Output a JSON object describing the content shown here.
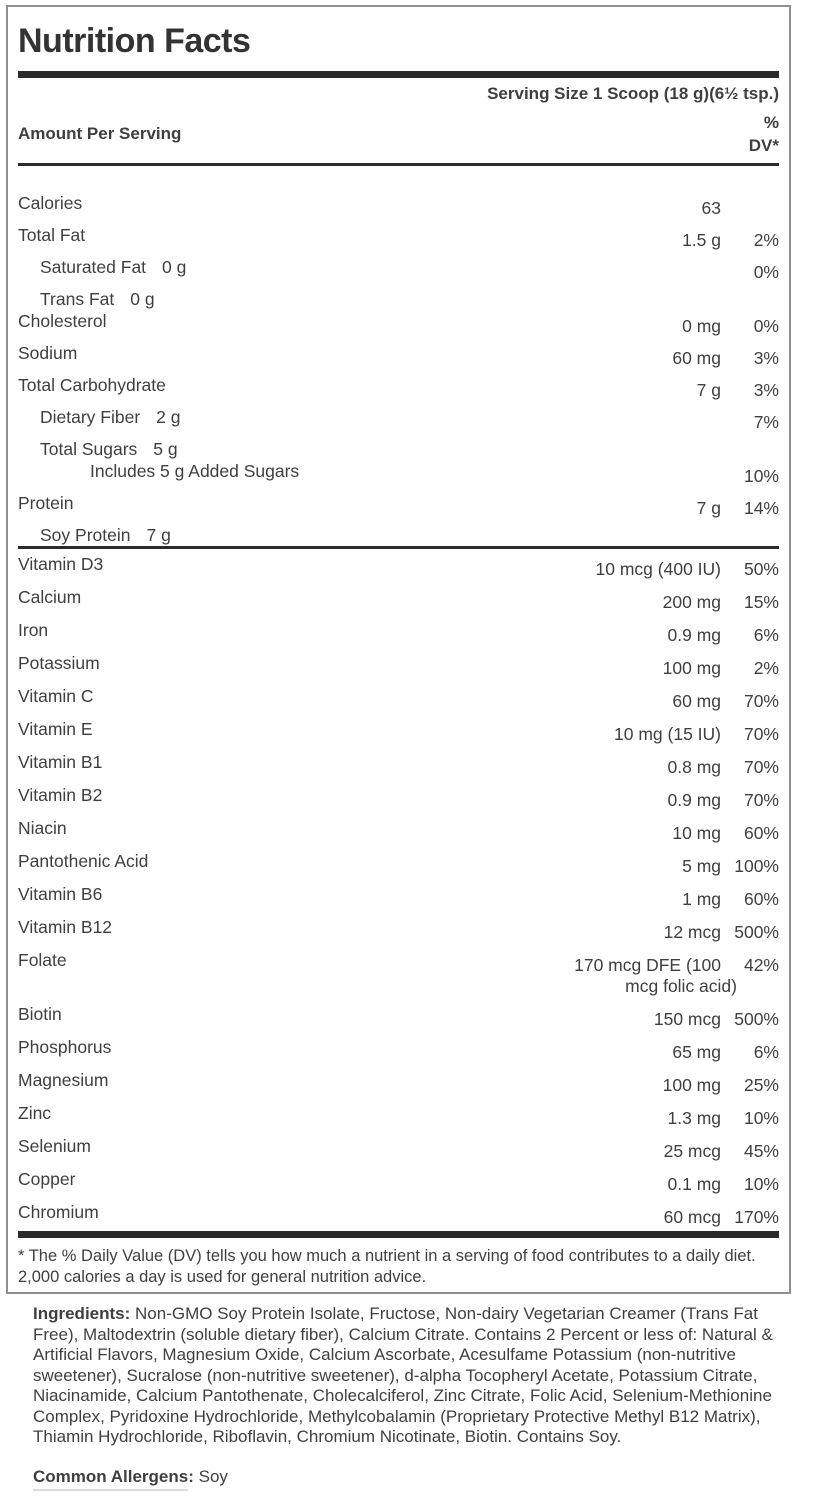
{
  "label": {
    "title": "Nutrition Facts",
    "serving_size": "Serving Size 1 Scoop (18 g)(6½ tsp.)",
    "amount_per_serving": "Amount Per Serving",
    "dv_header": [
      "%",
      "DV*"
    ],
    "macros": [
      {
        "name": "Calories",
        "amount": "63",
        "dv": ""
      },
      {
        "name": "Total Fat",
        "amount": "1.5 g",
        "dv": "2%"
      },
      {
        "name": "Saturated Fat",
        "inline_amount": "0 g",
        "dv": "0%",
        "indent": 1
      },
      {
        "name": "Trans Fat",
        "inline_amount": "0 g",
        "indent": 1,
        "tight_below": true
      },
      {
        "name": "Cholesterol",
        "amount": "0 mg",
        "dv": "0%"
      },
      {
        "name": "Sodium",
        "amount": "60 mg",
        "dv": "3%"
      },
      {
        "name": "Total Carbohydrate",
        "amount": "7 g",
        "dv": "3%"
      },
      {
        "name": "Dietary Fiber",
        "inline_amount": "2 g",
        "dv": "7%",
        "indent": 1
      },
      {
        "name": "Total Sugars",
        "inline_amount": "5 g",
        "indent": 1,
        "tight_below": true
      },
      {
        "name": "Includes 5 g Added Sugars",
        "dv": "10%",
        "indent": 2
      },
      {
        "name": "Protein",
        "amount": "7 g",
        "dv": "14%"
      },
      {
        "name": "Soy Protein",
        "inline_amount": "7 g",
        "indent": 1
      }
    ],
    "micros": [
      {
        "name": "Vitamin D3",
        "amount": "10 mcg (400 IU)",
        "dv": "50%"
      },
      {
        "name": "Calcium",
        "amount": "200 mg",
        "dv": "15%"
      },
      {
        "name": "Iron",
        "amount": "0.9 mg",
        "dv": "6%"
      },
      {
        "name": "Potassium",
        "amount": "100 mg",
        "dv": "2%"
      },
      {
        "name": "Vitamin C",
        "amount": "60 mg",
        "dv": "70%"
      },
      {
        "name": "Vitamin E",
        "amount": "10 mg (15 IU)",
        "dv": "70%"
      },
      {
        "name": "Vitamin B1",
        "amount": "0.8 mg",
        "dv": "70%"
      },
      {
        "name": "Vitamin B2",
        "amount": "0.9 mg",
        "dv": "70%"
      },
      {
        "name": "Niacin",
        "amount": "10 mg",
        "dv": "60%"
      },
      {
        "name": "Pantothenic Acid",
        "amount": "5 mg",
        "dv": "100%"
      },
      {
        "name": "Vitamin B6",
        "amount": "1 mg",
        "dv": "60%"
      },
      {
        "name": "Vitamin B12",
        "amount": "12 mcg",
        "dv": "500%"
      },
      {
        "name": "Folate",
        "amount": "170 mcg DFE (100",
        "amount_line2": "mcg folic acid)",
        "dv": "42%"
      },
      {
        "name": "Biotin",
        "amount": "150 mcg",
        "dv": "500%"
      },
      {
        "name": "Phosphorus",
        "amount": "65 mg",
        "dv": "6%"
      },
      {
        "name": "Magnesium",
        "amount": "100 mg",
        "dv": "25%"
      },
      {
        "name": "Zinc",
        "amount": "1.3 mg",
        "dv": "10%"
      },
      {
        "name": "Selenium",
        "amount": "25 mcg",
        "dv": "45%"
      },
      {
        "name": "Copper",
        "amount": "0.1 mg",
        "dv": "10%"
      },
      {
        "name": "Chromium",
        "amount": "60 mcg",
        "dv": "170%"
      }
    ],
    "footnote": "* The % Daily Value (DV) tells you how much a nutrient in a serving of food contributes to a daily diet. 2,000 calories a day is used for general nutrition advice."
  },
  "ingredients": {
    "label": "Ingredients:",
    "text": "Non-GMO Soy Protein Isolate, Fructose, Non-dairy Vegetarian Creamer (Trans Fat Free), Maltodextrin (soluble dietary fiber), Calcium Citrate. Contains 2 Percent or less of: Natural & Artificial Flavors, Magnesium Oxide, Calcium Ascorbate, Acesulfame Potassium (non-nutritive sweetener), Sucralose (non-nutritive sweetener), d-alpha Tocopheryl Acetate, Potassium Citrate, Niacinamide, Calcium Pantothenate, Cholecalciferol, Zinc Citrate, Folic Acid, Selenium-Methionine Complex, Pyridoxine Hydrochloride, Methylcobalamin (Proprietary Protective Methyl B12 Matrix), Thiamin Hydrochloride, Riboflavin, Chromium Nicotinate, Biotin. Contains Soy."
  },
  "allergens": {
    "label": "Common Allergens:",
    "text": "Soy"
  },
  "colors": {
    "text": "#3f3f3f",
    "bar": "#2b2b2b",
    "border": "#8f8f8f"
  }
}
